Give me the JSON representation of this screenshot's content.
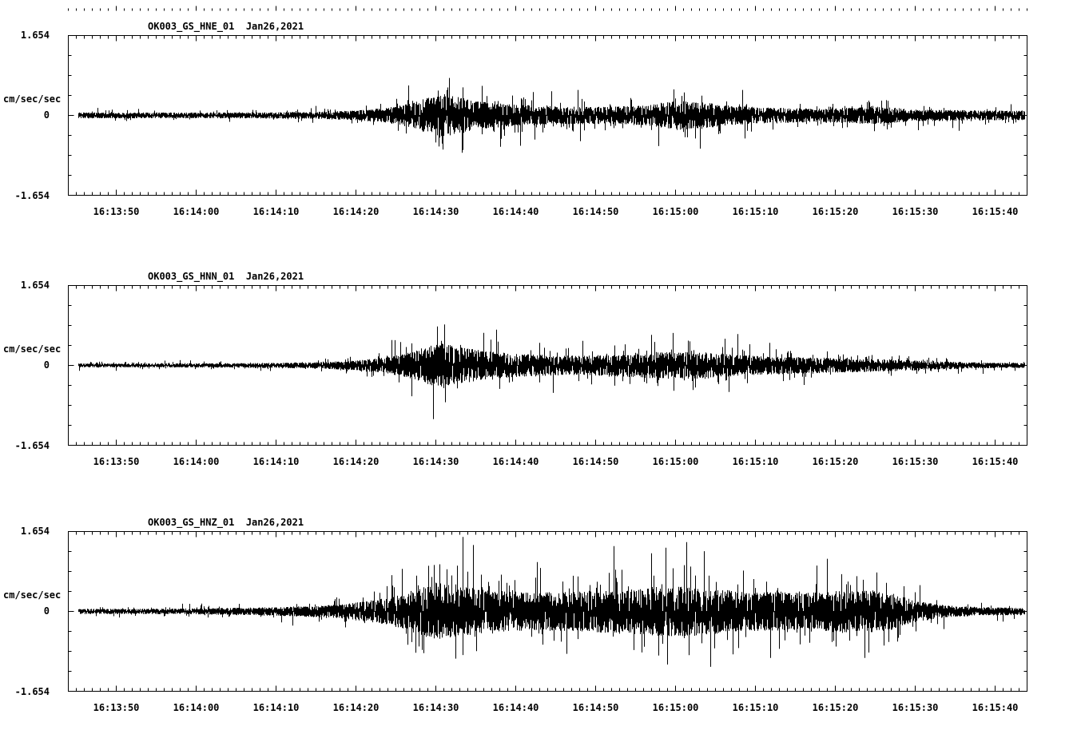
{
  "colors": {
    "trace": "#000000",
    "background": "#ffffff"
  },
  "panels": [
    {
      "id": "hne",
      "title": "OK003_GS_HNE_01  Jan26,2021",
      "y_max": "1.654",
      "y_zero": "0",
      "y_min": "-1.654",
      "y_unit": "cm/sec/sec"
    },
    {
      "id": "hnn",
      "title": "OK003_GS_HNN_01  Jan26,2021",
      "y_max": "1.654",
      "y_zero": "0",
      "y_min": "-1.654",
      "y_unit": "cm/sec/sec"
    },
    {
      "id": "hnz",
      "title": "OK003_GS_HNZ_01  Jan26,2021",
      "y_max": "1.654",
      "y_zero": "0",
      "y_min": "-1.654",
      "y_unit": "cm/sec/sec"
    }
  ],
  "chart_data": [
    {
      "type": "line",
      "subtype": "seismogram",
      "title": "OK003_GS_HNE_01 Jan26,2021",
      "ylabel": "cm/sec/sec",
      "ylim": [
        -1.654,
        1.654
      ],
      "x_ticks": [
        "16:13:50",
        "16:14:00",
        "16:14:10",
        "16:14:20",
        "16:14:30",
        "16:14:40",
        "16:14:50",
        "16:15:00",
        "16:15:10",
        "16:15:20",
        "16:15:30",
        "16:15:40"
      ],
      "x_start": "16:13:44",
      "x_end": "16:15:44",
      "grid": false,
      "legend": "none",
      "envelope": {
        "t": [
          0,
          20,
          30,
          36,
          40,
          43,
          45,
          47,
          49,
          52,
          56,
          62,
          68,
          73,
          76,
          79,
          83,
          88,
          94,
          99,
          102,
          106,
          112,
          120
        ],
        "a": [
          0.06,
          0.06,
          0.07,
          0.1,
          0.16,
          0.25,
          0.38,
          0.45,
          0.38,
          0.28,
          0.22,
          0.18,
          0.18,
          0.22,
          0.3,
          0.28,
          0.2,
          0.16,
          0.14,
          0.17,
          0.18,
          0.12,
          0.11,
          0.1
        ]
      }
    },
    {
      "type": "line",
      "subtype": "seismogram",
      "title": "OK003_GS_HNN_01 Jan26,2021",
      "ylabel": "cm/sec/sec",
      "ylim": [
        -1.654,
        1.654
      ],
      "x_ticks": [
        "16:13:50",
        "16:14:00",
        "16:14:10",
        "16:14:20",
        "16:14:30",
        "16:14:40",
        "16:14:50",
        "16:15:00",
        "16:15:10",
        "16:15:20",
        "16:15:30",
        "16:15:40"
      ],
      "x_start": "16:13:44",
      "x_end": "16:15:44",
      "grid": false,
      "legend": "none",
      "envelope": {
        "t": [
          0,
          20,
          30,
          36,
          40,
          43,
          45,
          47,
          49,
          52,
          56,
          62,
          68,
          72,
          76,
          80,
          85,
          90,
          96,
          102,
          108,
          114,
          120
        ],
        "a": [
          0.04,
          0.045,
          0.06,
          0.1,
          0.17,
          0.28,
          0.4,
          0.45,
          0.38,
          0.3,
          0.24,
          0.2,
          0.22,
          0.26,
          0.28,
          0.27,
          0.2,
          0.18,
          0.15,
          0.13,
          0.09,
          0.06,
          0.05
        ]
      }
    },
    {
      "type": "line",
      "subtype": "seismogram",
      "title": "OK003_GS_HNZ_01 Jan26,2021",
      "ylabel": "cm/sec/sec",
      "ylim": [
        -1.654,
        1.654
      ],
      "x_ticks": [
        "16:13:50",
        "16:14:00",
        "16:14:10",
        "16:14:20",
        "16:14:30",
        "16:14:40",
        "16:14:50",
        "16:15:00",
        "16:15:10",
        "16:15:20",
        "16:15:30",
        "16:15:40"
      ],
      "x_start": "16:13:44",
      "x_end": "16:15:44",
      "grid": false,
      "legend": "none",
      "envelope": {
        "t": [
          0,
          16,
          26,
          34,
          40,
          44,
          46,
          48,
          52,
          56,
          60,
          64,
          68,
          72,
          76,
          80,
          84,
          88,
          92,
          96,
          100,
          103,
          106,
          110,
          114,
          120
        ],
        "a": [
          0.05,
          0.06,
          0.09,
          0.14,
          0.28,
          0.48,
          0.6,
          0.55,
          0.45,
          0.4,
          0.4,
          0.42,
          0.45,
          0.5,
          0.52,
          0.48,
          0.42,
          0.4,
          0.38,
          0.42,
          0.46,
          0.38,
          0.22,
          0.12,
          0.09,
          0.07
        ]
      }
    }
  ]
}
